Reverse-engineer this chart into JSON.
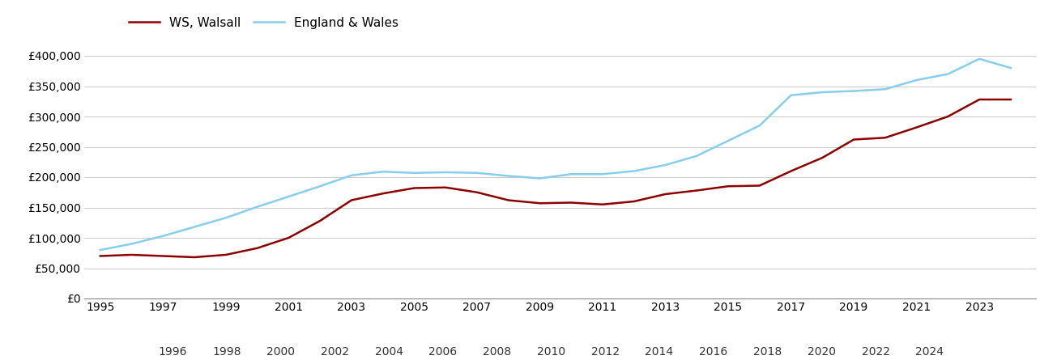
{
  "walsall": {
    "years": [
      1995,
      1996,
      1997,
      1998,
      1999,
      2000,
      2001,
      2002,
      2003,
      2004,
      2005,
      2006,
      2007,
      2008,
      2009,
      2010,
      2011,
      2012,
      2013,
      2014,
      2015,
      2016,
      2017,
      2018,
      2019,
      2020,
      2021,
      2022,
      2023,
      2024
    ],
    "values": [
      70000,
      72000,
      70000,
      68000,
      72000,
      83000,
      100000,
      128000,
      162000,
      173000,
      182000,
      183000,
      175000,
      162000,
      157000,
      158000,
      155000,
      160000,
      172000,
      178000,
      185000,
      186000,
      210000,
      232000,
      262000,
      265000,
      282000,
      300000,
      328000,
      328000
    ]
  },
  "england_wales": {
    "years": [
      1995,
      1996,
      1997,
      1998,
      1999,
      2000,
      2001,
      2002,
      2003,
      2004,
      2005,
      2006,
      2007,
      2008,
      2009,
      2010,
      2011,
      2012,
      2013,
      2014,
      2015,
      2016,
      2017,
      2018,
      2019,
      2020,
      2021,
      2022,
      2023,
      2024
    ],
    "values": [
      80000,
      90000,
      103000,
      118000,
      133000,
      151000,
      168000,
      185000,
      203000,
      209000,
      207000,
      208000,
      207000,
      202000,
      198000,
      205000,
      205000,
      210000,
      220000,
      235000,
      260000,
      285000,
      335000,
      340000,
      342000,
      345000,
      360000,
      370000,
      395000,
      380000
    ]
  },
  "walsall_color": "#8B0000",
  "england_wales_color": "#87CEEB",
  "background_color": "#ffffff",
  "grid_color": "#cccccc",
  "ylim": [
    0,
    420000
  ],
  "yticks": [
    0,
    50000,
    100000,
    150000,
    200000,
    250000,
    300000,
    350000,
    400000
  ],
  "legend_labels": [
    "WS, Walsall",
    "England & Wales"
  ],
  "xlim": [
    1994.5,
    2024.8
  ],
  "odd_years": [
    1995,
    1997,
    1999,
    2001,
    2003,
    2005,
    2007,
    2009,
    2011,
    2013,
    2015,
    2017,
    2019,
    2021,
    2023
  ],
  "even_years": [
    1996,
    1998,
    2000,
    2002,
    2004,
    2006,
    2008,
    2010,
    2012,
    2014,
    2016,
    2018,
    2020,
    2022,
    2024
  ]
}
